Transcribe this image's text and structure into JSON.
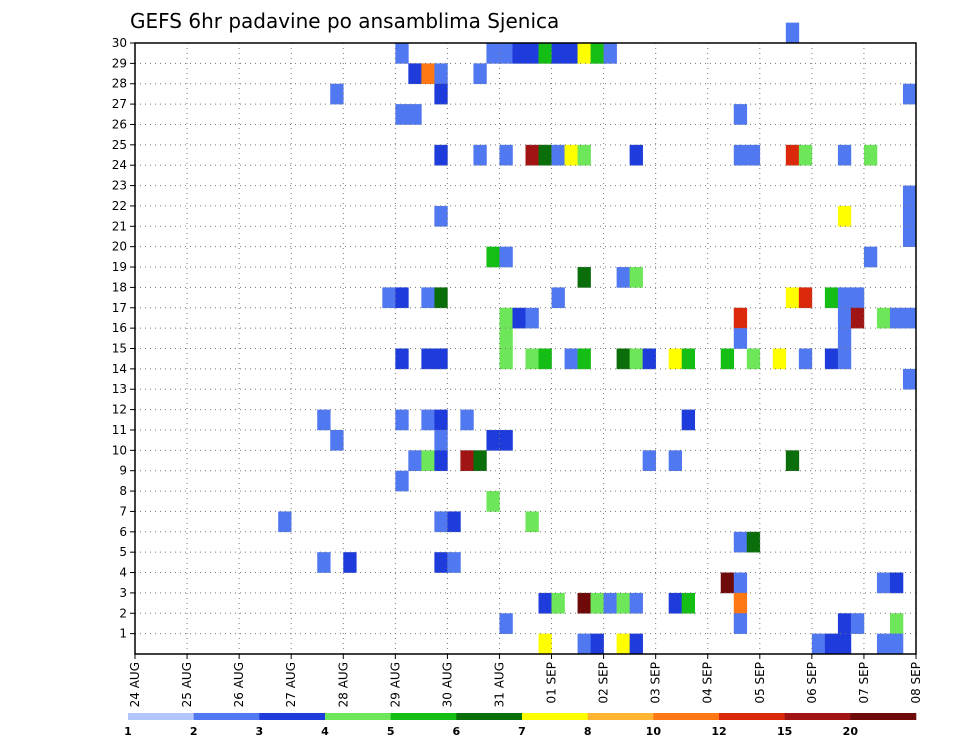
{
  "chart_data": {
    "type": "heatmap",
    "title": "GEFS 6hr padavine po ansamblima Sjenica",
    "xlabel": "",
    "ylabel": "",
    "x_tick_labels": [
      "24 AUG",
      "25 AUG",
      "26 AUG",
      "27 AUG",
      "28 AUG",
      "29 AUG",
      "30 AUG",
      "31 AUG",
      "01 SEP",
      "02 SEP",
      "03 SEP",
      "04 SEP",
      "05 SEP",
      "06 SEP",
      "07 SEP",
      "08 SEP"
    ],
    "y_tick_labels": [
      "1",
      "2",
      "3",
      "4",
      "5",
      "6",
      "7",
      "8",
      "9",
      "10",
      "11",
      "12",
      "13",
      "14",
      "15",
      "16",
      "17",
      "18",
      "19",
      "20",
      "21",
      "22",
      "23",
      "24",
      "25",
      "26",
      "27",
      "28",
      "29",
      "30"
    ],
    "x_range": [
      0,
      60
    ],
    "y_range": [
      0,
      30
    ],
    "grid": true,
    "legend_placement": "bottom",
    "legend": {
      "labels": [
        "1",
        "2",
        "3",
        "4",
        "5",
        "6",
        "7",
        "8",
        "10",
        "12",
        "15",
        "20"
      ],
      "colors": [
        "#b4c6ff",
        "#5078f0",
        "#1e3cdc",
        "#6ee65a",
        "#14be14",
        "#0a6e0a",
        "#ffff00",
        "#ffb432",
        "#ff7814",
        "#dc280a",
        "#a01414",
        "#6e0a0a"
      ]
    },
    "cells": [
      [
        27,
        29,
        1
      ],
      [
        28,
        29,
        1
      ],
      [
        29,
        29,
        2
      ],
      [
        30,
        29,
        2
      ],
      [
        31,
        29,
        4
      ],
      [
        32,
        29,
        2
      ],
      [
        33,
        29,
        2
      ],
      [
        34,
        29,
        6
      ],
      [
        35,
        29,
        4
      ],
      [
        36,
        29,
        1
      ],
      [
        20,
        29,
        1
      ],
      [
        21,
        28,
        2
      ],
      [
        22,
        28,
        8
      ],
      [
        23,
        28,
        1
      ],
      [
        26,
        28,
        1
      ],
      [
        15,
        27,
        1
      ],
      [
        23,
        27,
        2
      ],
      [
        59,
        27,
        1
      ],
      [
        20,
        26,
        1
      ],
      [
        21,
        26,
        1
      ],
      [
        46,
        26,
        1
      ],
      [
        23,
        24,
        2
      ],
      [
        26,
        24,
        1
      ],
      [
        28,
        24,
        1
      ],
      [
        30,
        24,
        10
      ],
      [
        31,
        24,
        5
      ],
      [
        32,
        24,
        1
      ],
      [
        33,
        24,
        6
      ],
      [
        34,
        24,
        3
      ],
      [
        38,
        24,
        2
      ],
      [
        46,
        24,
        1
      ],
      [
        47,
        24,
        1
      ],
      [
        50,
        24,
        9
      ],
      [
        51,
        24,
        3
      ],
      [
        54,
        24,
        1
      ],
      [
        56,
        24,
        3
      ],
      [
        59,
        22,
        1
      ],
      [
        59,
        21,
        1
      ],
      [
        59,
        20,
        1
      ],
      [
        23,
        21,
        1
      ],
      [
        54,
        21,
        6
      ],
      [
        27,
        19,
        4
      ],
      [
        28,
        19,
        1
      ],
      [
        56,
        19,
        1
      ],
      [
        34,
        18,
        5
      ],
      [
        37,
        18,
        1
      ],
      [
        38,
        18,
        3
      ],
      [
        19,
        17,
        1
      ],
      [
        20,
        17,
        2
      ],
      [
        22,
        17,
        1
      ],
      [
        23,
        17,
        5
      ],
      [
        32,
        17,
        1
      ],
      [
        50,
        17,
        6
      ],
      [
        51,
        17,
        9
      ],
      [
        53,
        17,
        4
      ],
      [
        54,
        17,
        1
      ],
      [
        55,
        17,
        1
      ],
      [
        28,
        16,
        3
      ],
      [
        29,
        16,
        2
      ],
      [
        30,
        16,
        1
      ],
      [
        46,
        16,
        9
      ],
      [
        54,
        16,
        1
      ],
      [
        55,
        16,
        10
      ],
      [
        57,
        16,
        3
      ],
      [
        58,
        16,
        1
      ],
      [
        59,
        16,
        1
      ],
      [
        28,
        15,
        3
      ],
      [
        46,
        15,
        1
      ],
      [
        54,
        15,
        1
      ],
      [
        20,
        14,
        2
      ],
      [
        22,
        14,
        2
      ],
      [
        23,
        14,
        2
      ],
      [
        28,
        14,
        3
      ],
      [
        30,
        14,
        3
      ],
      [
        31,
        14,
        4
      ],
      [
        33,
        14,
        1
      ],
      [
        34,
        14,
        4
      ],
      [
        37,
        14,
        5
      ],
      [
        38,
        14,
        3
      ],
      [
        39,
        14,
        2
      ],
      [
        41,
        14,
        6
      ],
      [
        42,
        14,
        4
      ],
      [
        45,
        14,
        4
      ],
      [
        47,
        14,
        3
      ],
      [
        49,
        14,
        6
      ],
      [
        51,
        14,
        1
      ],
      [
        53,
        14,
        2
      ],
      [
        54,
        14,
        1
      ],
      [
        59,
        13,
        1
      ],
      [
        42,
        11,
        2
      ],
      [
        14,
        11,
        1
      ],
      [
        20,
        11,
        1
      ],
      [
        22,
        11,
        1
      ],
      [
        23,
        11,
        2
      ],
      [
        25,
        11,
        1
      ],
      [
        15,
        10,
        1
      ],
      [
        23,
        10,
        1
      ],
      [
        27,
        10,
        2
      ],
      [
        28,
        10,
        2
      ],
      [
        21,
        9,
        1
      ],
      [
        22,
        9,
        3
      ],
      [
        23,
        9,
        2
      ],
      [
        25,
        9,
        10
      ],
      [
        26,
        9,
        5
      ],
      [
        39,
        9,
        1
      ],
      [
        41,
        9,
        1
      ],
      [
        50,
        9,
        5
      ],
      [
        20,
        8,
        1
      ],
      [
        27,
        7,
        3
      ],
      [
        11,
        6,
        1
      ],
      [
        23,
        6,
        1
      ],
      [
        24,
        6,
        2
      ],
      [
        30,
        6,
        3
      ],
      [
        46,
        5,
        1
      ],
      [
        47,
        5,
        5
      ],
      [
        14,
        4,
        1
      ],
      [
        16,
        4,
        2
      ],
      [
        23,
        4,
        2
      ],
      [
        24,
        4,
        1
      ],
      [
        45,
        3,
        11
      ],
      [
        46,
        3,
        1
      ],
      [
        57,
        3,
        1
      ],
      [
        58,
        3,
        2
      ],
      [
        31,
        2,
        2
      ],
      [
        32,
        2,
        3
      ],
      [
        34,
        2,
        11
      ],
      [
        35,
        2,
        3
      ],
      [
        36,
        2,
        1
      ],
      [
        37,
        2,
        3
      ],
      [
        38,
        2,
        1
      ],
      [
        41,
        2,
        2
      ],
      [
        42,
        2,
        4
      ],
      [
        46,
        2,
        8
      ],
      [
        28,
        1,
        1
      ],
      [
        46,
        1,
        1
      ],
      [
        54,
        1,
        2
      ],
      [
        55,
        1,
        1
      ],
      [
        58,
        1,
        3
      ],
      [
        31,
        0,
        6
      ],
      [
        34,
        0,
        1
      ],
      [
        35,
        0,
        2
      ],
      [
        37,
        0,
        6
      ],
      [
        38,
        0,
        2
      ],
      [
        52,
        0,
        1
      ],
      [
        53,
        0,
        2
      ],
      [
        54,
        0,
        2
      ],
      [
        57,
        0,
        1
      ],
      [
        58,
        0,
        1
      ],
      [
        50,
        30,
        1
      ]
    ]
  }
}
